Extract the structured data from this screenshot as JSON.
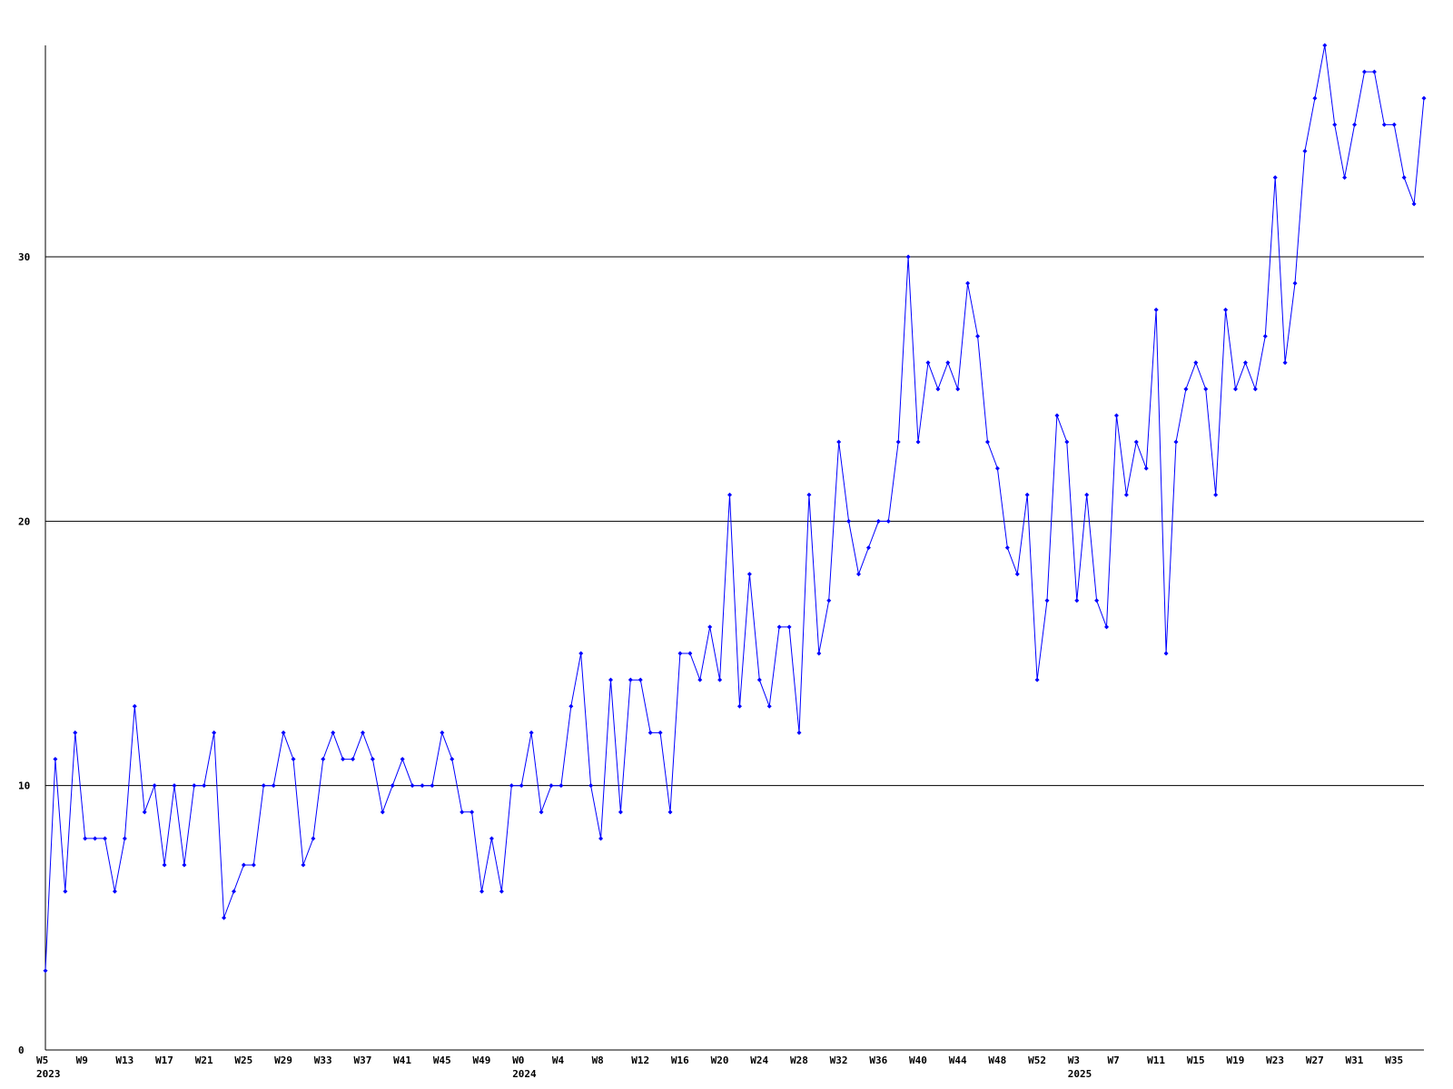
{
  "chart_data": {
    "type": "line",
    "categories": [
      [
        "W5",
        "2023"
      ],
      null,
      null,
      null,
      [
        "W9"
      ],
      null,
      null,
      null,
      [
        "W13"
      ],
      null,
      null,
      null,
      [
        "W17"
      ],
      null,
      null,
      null,
      [
        "W21"
      ],
      null,
      null,
      null,
      [
        "W25"
      ],
      null,
      null,
      null,
      [
        "W29"
      ],
      null,
      null,
      null,
      [
        "W33"
      ],
      null,
      null,
      null,
      [
        "W37"
      ],
      null,
      null,
      null,
      [
        "W41"
      ],
      null,
      null,
      null,
      [
        "W45"
      ],
      null,
      null,
      null,
      [
        "W49"
      ],
      null,
      null,
      null,
      [
        "W0",
        "2024"
      ],
      null,
      null,
      null,
      [
        "W4"
      ],
      null,
      null,
      null,
      [
        "W8"
      ],
      null,
      null,
      null,
      [
        "W12"
      ],
      null,
      null,
      null,
      [
        "W16"
      ],
      null,
      null,
      null,
      [
        "W20"
      ],
      null,
      null,
      null,
      [
        "W24"
      ],
      null,
      null,
      null,
      [
        "W28"
      ],
      null,
      null,
      null,
      [
        "W32"
      ],
      null,
      null,
      null,
      [
        "W36"
      ],
      null,
      null,
      null,
      [
        "W40"
      ],
      null,
      null,
      null,
      [
        "W44"
      ],
      null,
      null,
      null,
      [
        "W48"
      ],
      null,
      null,
      null,
      [
        "W52"
      ],
      null,
      null,
      null,
      [
        "W3",
        "2025"
      ],
      null,
      null,
      null,
      [
        "W7"
      ],
      null,
      null,
      null,
      [
        "W11"
      ],
      null,
      null,
      null,
      [
        "W15"
      ],
      null,
      null,
      null,
      [
        "W19"
      ],
      null,
      null,
      null,
      [
        "W23"
      ],
      null,
      null,
      null,
      [
        "W27"
      ],
      null,
      null,
      null,
      [
        "W31"
      ],
      null,
      null,
      null,
      [
        "W35"
      ],
      null,
      null,
      null
    ],
    "series": [
      {
        "color": "#0000ff",
        "values": [
          3,
          11,
          6,
          12,
          8,
          8,
          8,
          6,
          8,
          13,
          9,
          10,
          7,
          10,
          7,
          10,
          10,
          12,
          5,
          6,
          7,
          7,
          10,
          10,
          12,
          11,
          7,
          8,
          11,
          12,
          11,
          11,
          12,
          11,
          9,
          10,
          11,
          10,
          10,
          10,
          12,
          11,
          9,
          9,
          6,
          8,
          6,
          10,
          10,
          12,
          9,
          10,
          10,
          13,
          15,
          10,
          8,
          14,
          9,
          14,
          14,
          12,
          12,
          9,
          15,
          15,
          14,
          16,
          14,
          21,
          13,
          18,
          14,
          13,
          16,
          16,
          12,
          21,
          15,
          17,
          23,
          20,
          18,
          19,
          20,
          20,
          23,
          30,
          23,
          26,
          25,
          26,
          25,
          29,
          27,
          23,
          22,
          19,
          18,
          21,
          14,
          17,
          24,
          23,
          17,
          21,
          17,
          16,
          24,
          21,
          23,
          22,
          28,
          15,
          23,
          25,
          26,
          25,
          21,
          28,
          25,
          26,
          25,
          27,
          33,
          26,
          29,
          34,
          36,
          38,
          35,
          33,
          35,
          37,
          37,
          35,
          35,
          33,
          32,
          36
        ]
      }
    ],
    "ylim": [
      0,
      38
    ],
    "yticks": [
      0,
      10,
      20,
      30
    ],
    "grid": true
  }
}
